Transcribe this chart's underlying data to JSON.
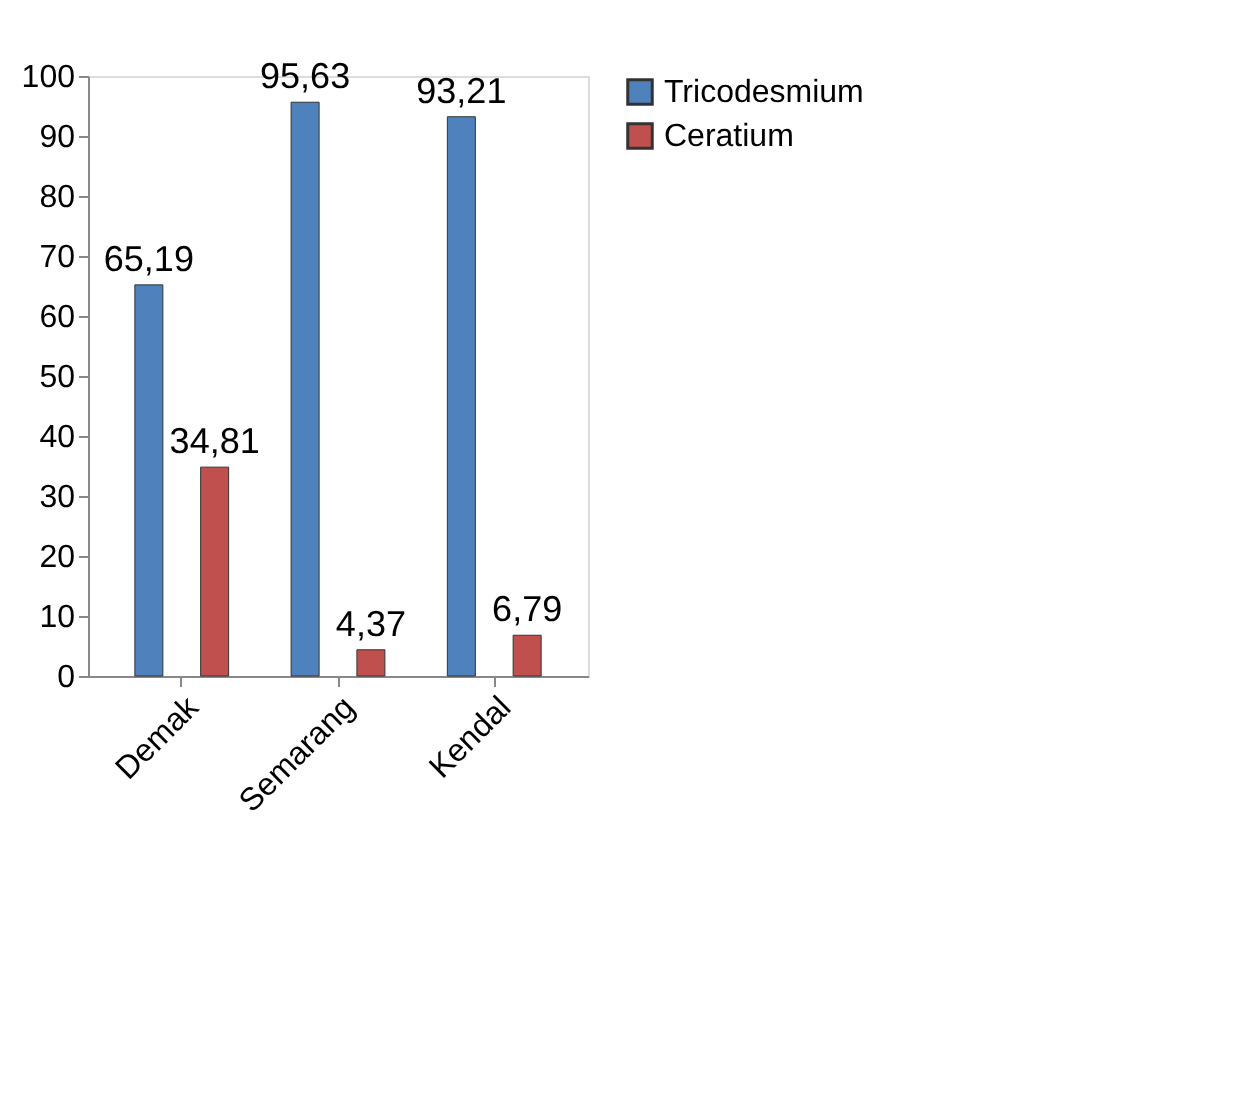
{
  "chart_data": {
    "type": "bar",
    "categories": [
      "Demak",
      "Semarang",
      "Kendal"
    ],
    "series": [
      {
        "name": "Tricodesmium",
        "color": "#4f81bd",
        "values": [
          65.19,
          95.63,
          93.21
        ],
        "value_labels": [
          "65,19",
          "95,63",
          "93,21"
        ]
      },
      {
        "name": "Ceratium",
        "color": "#c0504d",
        "values": [
          34.81,
          4.37,
          6.79
        ],
        "value_labels": [
          "34,81",
          "4,37",
          "6,79"
        ]
      }
    ],
    "ylim": [
      0,
      100
    ],
    "yticks": [
      0,
      10,
      20,
      30,
      40,
      50,
      60,
      70,
      80,
      90,
      100
    ],
    "grid": false,
    "legend": "right"
  }
}
